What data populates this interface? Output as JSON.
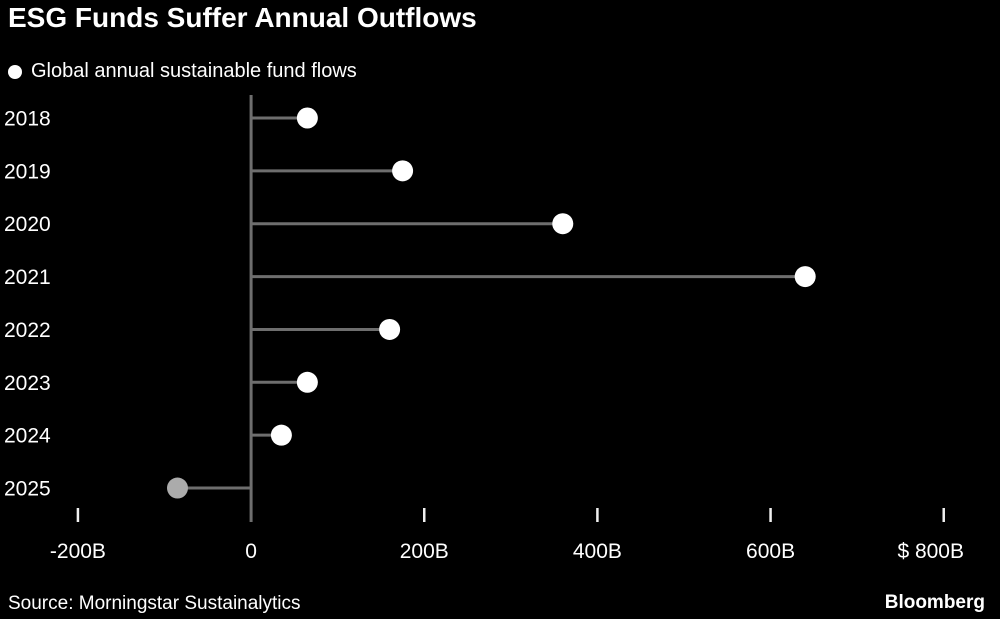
{
  "header": {
    "title": "ESG Funds Suffer Annual Outflows",
    "legend_label": "Global annual sustainable fund flows"
  },
  "footer": {
    "source": "Source: Morningstar Sustainalytics",
    "brand": "Bloomberg"
  },
  "chart_data": {
    "type": "scatter",
    "style": "lollipop",
    "orientation": "horizontal",
    "title": "ESG Funds Suffer Annual Outflows",
    "legend": "Global annual sustainable fund flows",
    "legend_position": "top-left",
    "categories": [
      "2018",
      "2019",
      "2020",
      "2021",
      "2022",
      "2023",
      "2024",
      "2025"
    ],
    "values": [
      65,
      175,
      360,
      640,
      160,
      65,
      35,
      -85
    ],
    "unit": "billions USD",
    "xlim": [
      -290,
      865
    ],
    "grid": false,
    "ticks": [
      {
        "value": -200,
        "label": "-200B"
      },
      {
        "value": 0,
        "label": "0"
      },
      {
        "value": 200,
        "label": "200B"
      },
      {
        "value": 400,
        "label": "400B"
      },
      {
        "value": 600,
        "label": "600B"
      },
      {
        "value": 800,
        "label": "$ 800B"
      }
    ],
    "colors": {
      "background": "#000000",
      "text": "#ffffff",
      "stem": "#6e6e6e",
      "axis_line": "#6e6e6e",
      "tick_mark": "#f0f0f0",
      "dot": "#ffffff",
      "negative_dot": "#ababab"
    }
  }
}
